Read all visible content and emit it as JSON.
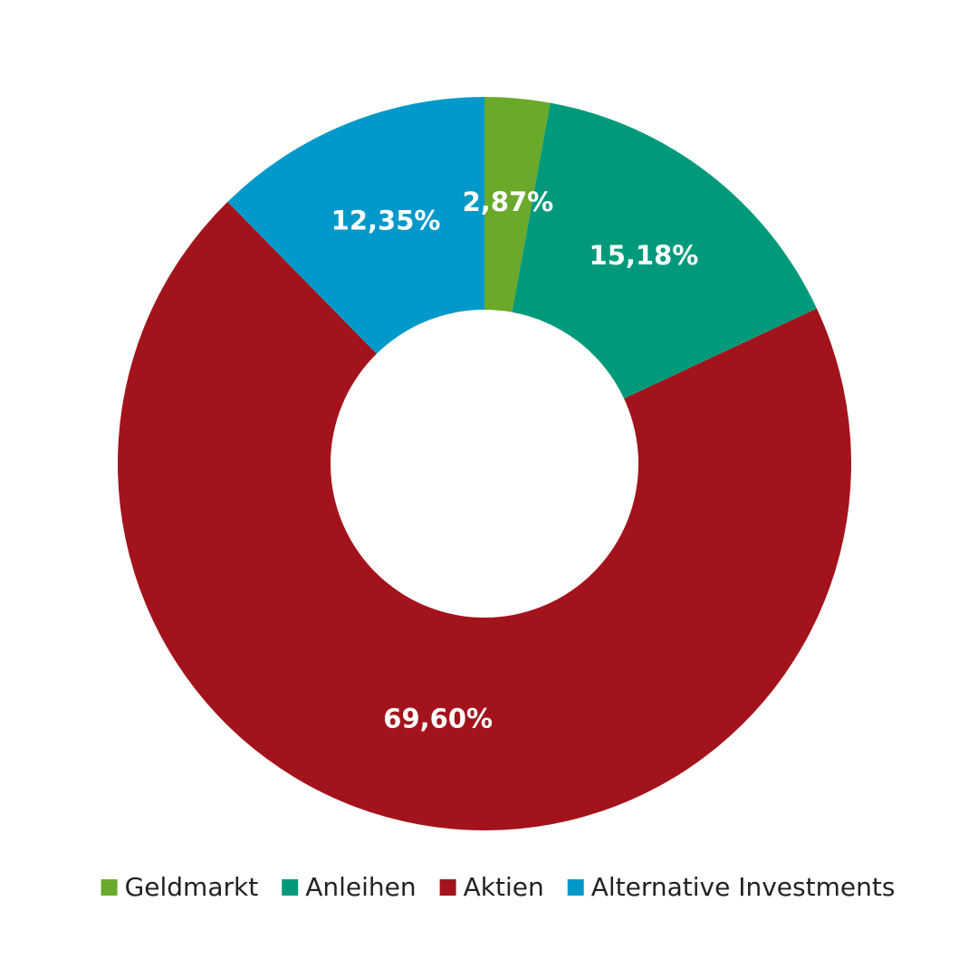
{
  "chart_data": {
    "type": "donut",
    "categories": [
      "Geldmarkt",
      "Anleihen",
      "Aktien",
      "Alternative Investments"
    ],
    "values": [
      2.87,
      15.18,
      69.6,
      12.35
    ],
    "value_labels": [
      "2,87%",
      "15,18%",
      "69,60%",
      "12,35%"
    ],
    "colors": [
      "#6aa92a",
      "#009a7b",
      "#a3131c",
      "#0099c9"
    ],
    "legend": "bottom"
  }
}
